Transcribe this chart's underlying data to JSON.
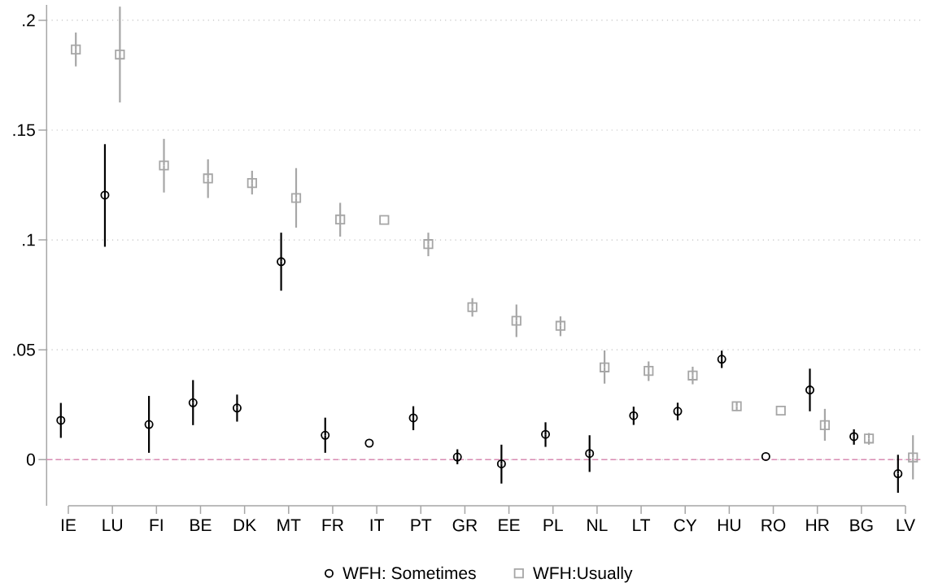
{
  "chart_data": {
    "type": "scatter",
    "categories": [
      "IE",
      "LU",
      "FI",
      "BE",
      "DK",
      "MT",
      "FR",
      "IT",
      "PT",
      "GR",
      "EE",
      "PL",
      "NL",
      "LT",
      "CY",
      "HU",
      "RO",
      "HR",
      "BG",
      "LV"
    ],
    "series": [
      {
        "name": "WFH: Sometimes",
        "color": "#000000",
        "marker": "circle",
        "values": [
          0.0179,
          0.1204,
          0.016,
          0.0259,
          0.0235,
          0.0901,
          0.0111,
          0.0075,
          0.019,
          0.0012,
          -0.0019,
          0.0115,
          0.0028,
          0.02,
          0.022,
          0.0457,
          0.0014,
          0.0317,
          0.0105,
          -0.0064
        ],
        "errors": [
          [
            0.0099,
            0.0258
          ],
          [
            0.0969,
            0.1436
          ],
          [
            0.0031,
            0.029
          ],
          [
            0.0157,
            0.0362
          ],
          [
            0.0173,
            0.0296
          ],
          [
            0.0769,
            0.1033
          ],
          [
            0.0031,
            0.0191
          ],
          null,
          [
            0.0134,
            0.0243
          ],
          [
            -0.0021,
            0.0047
          ],
          [
            -0.0109,
            0.0068
          ],
          [
            0.0058,
            0.017
          ],
          [
            -0.0056,
            0.0111
          ],
          [
            0.0158,
            0.0241
          ],
          [
            0.0179,
            0.0259
          ],
          [
            0.0417,
            0.0496
          ],
          null,
          [
            0.022,
            0.0414
          ],
          [
            0.0068,
            0.0138
          ],
          [
            -0.0151,
            0.0022
          ]
        ]
      },
      {
        "name": "WFH:Usually",
        "color": "#a6a6a6",
        "marker": "square",
        "values": [
          0.1867,
          0.1844,
          0.1339,
          0.128,
          0.1259,
          0.1191,
          0.1093,
          0.1091,
          0.0981,
          0.0694,
          0.0632,
          0.0609,
          0.042,
          0.0404,
          0.0383,
          0.0243,
          0.0223,
          0.0157,
          0.0096,
          0.001
        ],
        "errors": [
          [
            0.179,
            0.1944
          ],
          [
            0.1626,
            0.2062
          ],
          [
            0.1216,
            0.146
          ],
          [
            0.1191,
            0.1367
          ],
          [
            0.1207,
            0.1315
          ],
          [
            0.1056,
            0.1327
          ],
          [
            0.1015,
            0.1169
          ],
          null,
          [
            0.0926,
            0.1033
          ],
          [
            0.0651,
            0.0735
          ],
          [
            0.0558,
            0.0706
          ],
          [
            0.0562,
            0.0652
          ],
          [
            0.0346,
            0.0497
          ],
          [
            0.0358,
            0.0447
          ],
          [
            0.0343,
            0.0423
          ],
          [
            0.0222,
            0.0263
          ],
          null,
          [
            0.0086,
            0.0231
          ],
          [
            0.0068,
            0.0121
          ],
          [
            -0.009,
            0.0111
          ]
        ]
      }
    ],
    "ylim": [
      -0.021,
      0.207
    ],
    "yticks": [
      0,
      {
        "value": 0.05,
        "label": ".05"
      },
      {
        "value": 0.1,
        "label": ".1"
      },
      {
        "value": 0.15,
        "label": ".15"
      },
      {
        "value": 0.2,
        "label": ".2"
      }
    ],
    "grid": "y",
    "legend": "bottom",
    "ref_lines": [
      {
        "axis": "y",
        "value": 0,
        "color": "#d98cb3",
        "line_style": "dashed"
      }
    ]
  }
}
